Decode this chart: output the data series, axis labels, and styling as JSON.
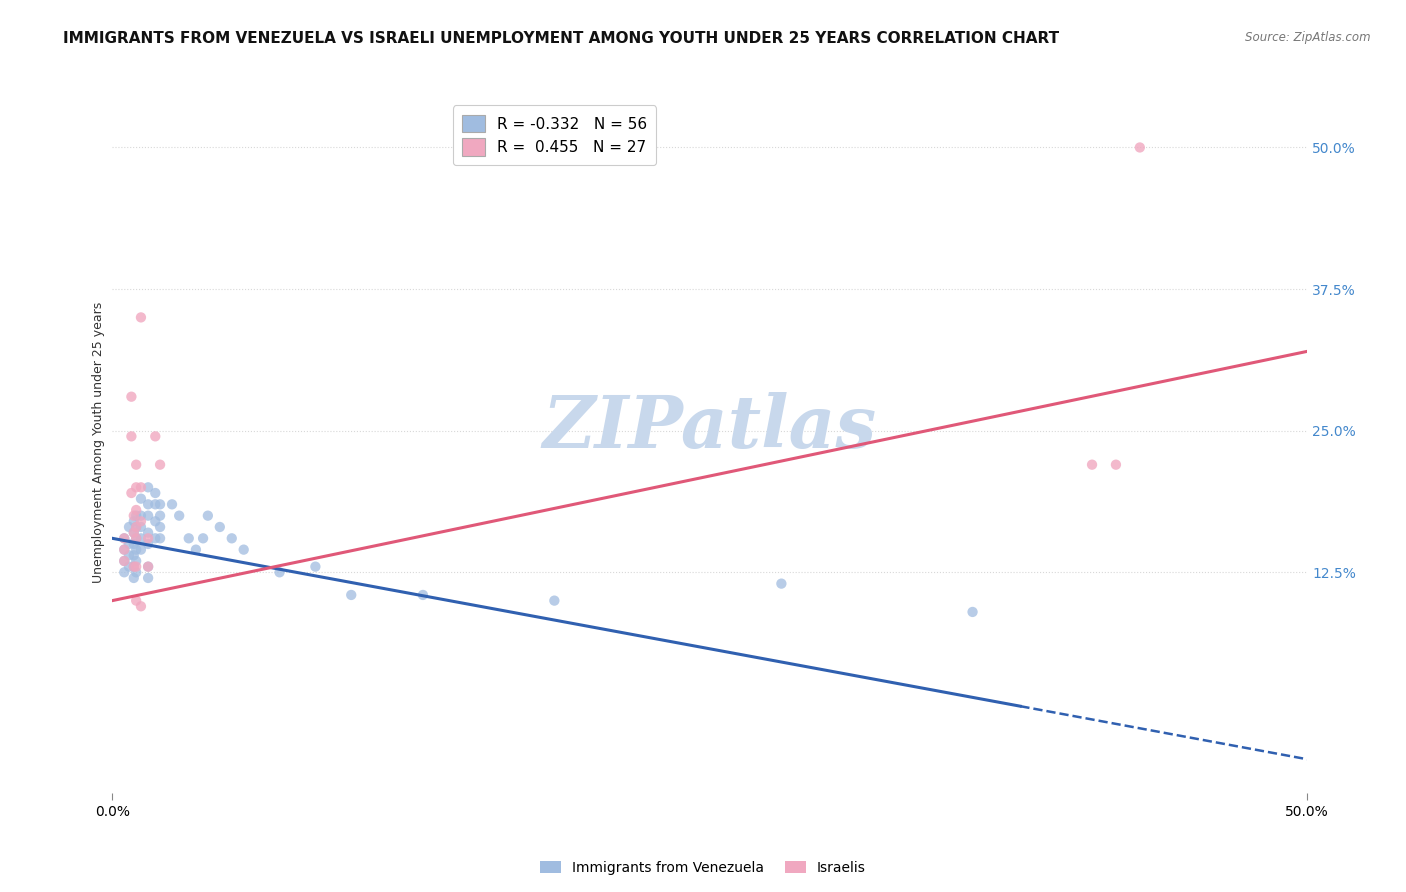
{
  "title": "IMMIGRANTS FROM VENEZUELA VS ISRAELI UNEMPLOYMENT AMONG YOUTH UNDER 25 YEARS CORRELATION CHART",
  "source": "Source: ZipAtlas.com",
  "ylabel": "Unemployment Among Youth under 25 years",
  "ytick_labels": [
    "12.5%",
    "25.0%",
    "37.5%",
    "50.0%"
  ],
  "ytick_values": [
    0.125,
    0.25,
    0.375,
    0.5
  ],
  "xlim": [
    0.0,
    0.5
  ],
  "ylim": [
    -0.07,
    0.55
  ],
  "legend_entries": [
    {
      "label": "R = -0.332   N = 56",
      "color": "#a8c8f0"
    },
    {
      "label": "R =  0.455   N = 27",
      "color": "#f5b8cc"
    }
  ],
  "legend_bottom": [
    {
      "label": "Immigrants from Venezuela",
      "color": "#a8c8f0"
    },
    {
      "label": "Israelis",
      "color": "#f5b8cc"
    }
  ],
  "watermark_text": "ZIPatlas",
  "blue_scatter": [
    [
      0.005,
      0.155
    ],
    [
      0.005,
      0.145
    ],
    [
      0.005,
      0.135
    ],
    [
      0.005,
      0.125
    ],
    [
      0.007,
      0.165
    ],
    [
      0.007,
      0.15
    ],
    [
      0.007,
      0.14
    ],
    [
      0.007,
      0.13
    ],
    [
      0.009,
      0.17
    ],
    [
      0.009,
      0.16
    ],
    [
      0.009,
      0.15
    ],
    [
      0.009,
      0.14
    ],
    [
      0.009,
      0.13
    ],
    [
      0.009,
      0.12
    ],
    [
      0.01,
      0.175
    ],
    [
      0.01,
      0.165
    ],
    [
      0.01,
      0.155
    ],
    [
      0.01,
      0.145
    ],
    [
      0.01,
      0.135
    ],
    [
      0.01,
      0.125
    ],
    [
      0.012,
      0.19
    ],
    [
      0.012,
      0.175
    ],
    [
      0.012,
      0.165
    ],
    [
      0.012,
      0.155
    ],
    [
      0.012,
      0.145
    ],
    [
      0.015,
      0.2
    ],
    [
      0.015,
      0.185
    ],
    [
      0.015,
      0.175
    ],
    [
      0.015,
      0.16
    ],
    [
      0.015,
      0.15
    ],
    [
      0.015,
      0.13
    ],
    [
      0.015,
      0.12
    ],
    [
      0.018,
      0.195
    ],
    [
      0.018,
      0.185
    ],
    [
      0.018,
      0.17
    ],
    [
      0.018,
      0.155
    ],
    [
      0.02,
      0.185
    ],
    [
      0.02,
      0.175
    ],
    [
      0.02,
      0.165
    ],
    [
      0.02,
      0.155
    ],
    [
      0.025,
      0.185
    ],
    [
      0.028,
      0.175
    ],
    [
      0.032,
      0.155
    ],
    [
      0.035,
      0.145
    ],
    [
      0.038,
      0.155
    ],
    [
      0.04,
      0.175
    ],
    [
      0.045,
      0.165
    ],
    [
      0.05,
      0.155
    ],
    [
      0.055,
      0.145
    ],
    [
      0.07,
      0.125
    ],
    [
      0.085,
      0.13
    ],
    [
      0.1,
      0.105
    ],
    [
      0.13,
      0.105
    ],
    [
      0.185,
      0.1
    ],
    [
      0.28,
      0.115
    ],
    [
      0.36,
      0.09
    ]
  ],
  "pink_scatter": [
    [
      0.005,
      0.155
    ],
    [
      0.005,
      0.145
    ],
    [
      0.005,
      0.135
    ],
    [
      0.008,
      0.28
    ],
    [
      0.008,
      0.245
    ],
    [
      0.008,
      0.195
    ],
    [
      0.009,
      0.175
    ],
    [
      0.009,
      0.16
    ],
    [
      0.009,
      0.13
    ],
    [
      0.01,
      0.22
    ],
    [
      0.01,
      0.2
    ],
    [
      0.01,
      0.18
    ],
    [
      0.01,
      0.165
    ],
    [
      0.01,
      0.155
    ],
    [
      0.01,
      0.13
    ],
    [
      0.01,
      0.1
    ],
    [
      0.012,
      0.35
    ],
    [
      0.012,
      0.2
    ],
    [
      0.012,
      0.17
    ],
    [
      0.012,
      0.095
    ],
    [
      0.015,
      0.155
    ],
    [
      0.015,
      0.13
    ],
    [
      0.018,
      0.245
    ],
    [
      0.02,
      0.22
    ],
    [
      0.43,
      0.5
    ],
    [
      0.42,
      0.22
    ],
    [
      0.41,
      0.22
    ]
  ],
  "blue_line": {
    "x0": 0.0,
    "y0": 0.155,
    "x1": 0.5,
    "y1": -0.04
  },
  "blue_line_solid_end": 0.38,
  "pink_line": {
    "x0": 0.0,
    "y0": 0.1,
    "x1": 0.5,
    "y1": 0.32
  },
  "background_color": "#ffffff",
  "grid_color": "#d8d8d8",
  "blue_color": "#a0bce0",
  "pink_color": "#f0a8c0",
  "blue_line_color": "#3060b0",
  "pink_line_color": "#e05878",
  "title_fontsize": 11,
  "axis_label_fontsize": 9,
  "tick_fontsize": 10,
  "watermark_color": "#c8d8ec",
  "watermark_fontsize": 52
}
